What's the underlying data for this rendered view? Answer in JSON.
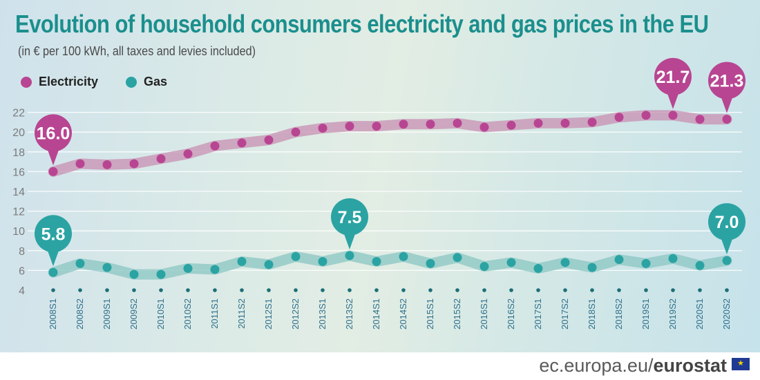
{
  "title": "Evolution of household consumers electricity and gas prices in the EU",
  "subtitle": "(in € per 100 kWh, all taxes and levies included)",
  "legend": {
    "electricity": {
      "label": "Electricity",
      "color": "#b84592"
    },
    "gas": {
      "label": "Gas",
      "color": "#2ba3a3"
    }
  },
  "footer": {
    "site": "ec.europa.eu/",
    "brand": "eurostat",
    "flag_icon": "eu-flag-icon"
  },
  "chart_data": {
    "type": "line",
    "categories": [
      "2008S1",
      "2008S2",
      "2009S1",
      "2009S2",
      "2010S1",
      "2010S2",
      "2011S1",
      "2011S2",
      "2012S1",
      "2012S2",
      "2013S1",
      "2013S2",
      "2014S1",
      "2014S2",
      "2015S1",
      "2015S2",
      "2016S1",
      "2016S2",
      "2017S1",
      "2017S2",
      "2018S1",
      "2018S2",
      "2019S1",
      "2019S2",
      "2020S1",
      "2020S2"
    ],
    "series": [
      {
        "name": "Electricity",
        "color": "#b84592",
        "band_color": "#c995b5",
        "values": [
          16.0,
          16.8,
          16.7,
          16.8,
          17.3,
          17.8,
          18.6,
          18.9,
          19.2,
          20.0,
          20.4,
          20.6,
          20.6,
          20.8,
          20.8,
          20.9,
          20.5,
          20.7,
          20.9,
          20.9,
          21.0,
          21.5,
          21.7,
          21.7,
          21.3,
          21.3
        ]
      },
      {
        "name": "Gas",
        "color": "#2ba3a3",
        "band_color": "#8fc8c4",
        "values": [
          5.8,
          6.7,
          6.3,
          5.6,
          5.6,
          6.2,
          6.1,
          6.9,
          6.6,
          7.4,
          6.9,
          7.5,
          6.9,
          7.4,
          6.7,
          7.3,
          6.4,
          6.8,
          6.2,
          6.8,
          6.3,
          7.1,
          6.7,
          7.2,
          6.5,
          7.0
        ]
      }
    ],
    "callouts": [
      {
        "series": 0,
        "index": 0,
        "label": "16.0"
      },
      {
        "series": 0,
        "index": 23,
        "label": "21.7"
      },
      {
        "series": 0,
        "index": 25,
        "label": "21.3"
      },
      {
        "series": 1,
        "index": 0,
        "label": "5.8"
      },
      {
        "series": 1,
        "index": 11,
        "label": "7.5"
      },
      {
        "series": 1,
        "index": 25,
        "label": "7.0"
      }
    ],
    "ylim": [
      4,
      22
    ],
    "yticks": [
      4,
      6,
      8,
      10,
      12,
      14,
      16,
      18,
      20,
      22
    ],
    "grid": true,
    "title": "Evolution of household consumers electricity and gas prices in the EU",
    "ylabel": "€ per 100 kWh",
    "xlabel": ""
  }
}
